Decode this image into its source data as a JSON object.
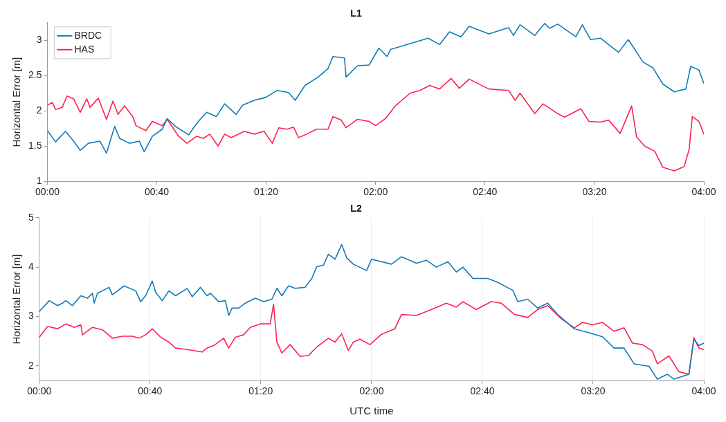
{
  "chart_data": [
    {
      "type": "line",
      "title": "L1",
      "ylabel": "Horizontal Error [m]",
      "xlim": [
        0,
        4
      ],
      "xticks": [
        {
          "value": 0,
          "label": "00:00"
        },
        {
          "value": 0.6667,
          "label": "00:40"
        },
        {
          "value": 1.3333,
          "label": "01:20"
        },
        {
          "value": 2,
          "label": "02:00"
        },
        {
          "value": 2.6667,
          "label": "02:40"
        },
        {
          "value": 3.3333,
          "label": "03:20"
        },
        {
          "value": 4,
          "label": "04:00"
        }
      ],
      "ylim": [
        1,
        3.25
      ],
      "yticks": [
        1,
        1.5,
        2,
        2.5,
        3
      ],
      "grid": false,
      "legend": "top left",
      "series": [
        {
          "name": "BRDC",
          "color": "#0e7bb8",
          "x": [
            0,
            0.05,
            0.11,
            0.16,
            0.2,
            0.25,
            0.32,
            0.36,
            0.41,
            0.44,
            0.5,
            0.56,
            0.59,
            0.64,
            0.7,
            0.73,
            0.78,
            0.86,
            0.92,
            0.97,
            1.03,
            1.08,
            1.15,
            1.19,
            1.26,
            1.33,
            1.4,
            1.47,
            1.51,
            1.57,
            1.65,
            1.71,
            1.74,
            1.81,
            1.82,
            1.89,
            1.96,
            2.02,
            2.07,
            2.09,
            2.19,
            2.32,
            2.39,
            2.45,
            2.52,
            2.57,
            2.69,
            2.81,
            2.84,
            2.88,
            2.97,
            3.03,
            3.06,
            3.11,
            3.22,
            3.26,
            3.31,
            3.37,
            3.48,
            3.54,
            3.63,
            3.69,
            3.75,
            3.82,
            3.89,
            3.92,
            3.97,
            4
          ],
          "values": [
            1.72,
            1.56,
            1.71,
            1.57,
            1.44,
            1.54,
            1.57,
            1.4,
            1.78,
            1.61,
            1.54,
            1.57,
            1.42,
            1.64,
            1.74,
            1.89,
            1.78,
            1.66,
            1.85,
            1.98,
            1.92,
            2.1,
            1.95,
            2.08,
            2.15,
            2.19,
            2.29,
            2.26,
            2.15,
            2.36,
            2.48,
            2.6,
            2.77,
            2.75,
            2.48,
            2.64,
            2.65,
            2.89,
            2.77,
            2.87,
            2.94,
            3.03,
            2.94,
            3.12,
            3.05,
            3.2,
            3.09,
            3.18,
            3.07,
            3.22,
            3.07,
            3.24,
            3.17,
            3.23,
            3.05,
            3.22,
            3.01,
            3.03,
            2.83,
            3.01,
            2.69,
            2.61,
            2.38,
            2.27,
            2.31,
            2.63,
            2.58,
            2.39
          ]
        },
        {
          "name": "HAS",
          "color": "#ff2050",
          "x": [
            0,
            0.03,
            0.05,
            0.09,
            0.12,
            0.16,
            0.2,
            0.24,
            0.26,
            0.31,
            0.36,
            0.4,
            0.43,
            0.47,
            0.52,
            0.54,
            0.6,
            0.64,
            0.7,
            0.73,
            0.8,
            0.85,
            0.91,
            0.95,
            0.99,
            1.04,
            1.08,
            1.12,
            1.2,
            1.26,
            1.32,
            1.37,
            1.41,
            1.46,
            1.5,
            1.53,
            1.58,
            1.64,
            1.71,
            1.74,
            1.79,
            1.82,
            1.89,
            1.96,
            2,
            2.06,
            2.12,
            2.21,
            2.27,
            2.33,
            2.39,
            2.46,
            2.51,
            2.57,
            2.69,
            2.81,
            2.85,
            2.88,
            2.97,
            3.02,
            3.11,
            3.15,
            3.25,
            3.3,
            3.37,
            3.42,
            3.49,
            3.56,
            3.59,
            3.64,
            3.7,
            3.75,
            3.82,
            3.88,
            3.91,
            3.93,
            3.97,
            4
          ],
          "values": [
            2.08,
            2.12,
            2.02,
            2.05,
            2.21,
            2.17,
            1.98,
            2.17,
            2.05,
            2.18,
            1.88,
            2.14,
            1.95,
            2.07,
            1.92,
            1.79,
            1.72,
            1.85,
            1.79,
            1.88,
            1.64,
            1.54,
            1.64,
            1.61,
            1.67,
            1.5,
            1.67,
            1.62,
            1.71,
            1.67,
            1.71,
            1.54,
            1.76,
            1.74,
            1.77,
            1.62,
            1.67,
            1.74,
            1.74,
            1.92,
            1.87,
            1.76,
            1.88,
            1.85,
            1.79,
            1.89,
            2.07,
            2.25,
            2.29,
            2.36,
            2.31,
            2.46,
            2.32,
            2.45,
            2.31,
            2.29,
            2.15,
            2.25,
            1.96,
            2.1,
            1.96,
            1.91,
            2.03,
            1.85,
            1.84,
            1.87,
            1.68,
            2.07,
            1.63,
            1.5,
            1.43,
            1.2,
            1.15,
            1.21,
            1.45,
            1.92,
            1.85,
            1.67
          ]
        }
      ]
    },
    {
      "type": "line",
      "title": "L2",
      "ylabel": "Horizontal Error [m]",
      "xlabel": "UTC time",
      "xlim": [
        0,
        4
      ],
      "xticks": [
        {
          "value": 0,
          "label": "00:00"
        },
        {
          "value": 0.6667,
          "label": "00:40"
        },
        {
          "value": 1.3333,
          "label": "01:20"
        },
        {
          "value": 2,
          "label": "02:00"
        },
        {
          "value": 2.6667,
          "label": "02:40"
        },
        {
          "value": 3.3333,
          "label": "03:20"
        },
        {
          "value": 4,
          "label": "04:00"
        }
      ],
      "ylim": [
        1.7,
        5
      ],
      "yticks": [
        2,
        3,
        4,
        5
      ],
      "grid": "x",
      "series": [
        {
          "color": "#0e7bb8",
          "x": [
            0,
            0.06,
            0.11,
            0.14,
            0.16,
            0.2,
            0.25,
            0.29,
            0.32,
            0.33,
            0.35,
            0.42,
            0.44,
            0.51,
            0.58,
            0.61,
            0.64,
            0.68,
            0.7,
            0.74,
            0.78,
            0.82,
            0.89,
            0.92,
            0.97,
            1.01,
            1.03,
            1.08,
            1.12,
            1.14,
            1.16,
            1.2,
            1.24,
            1.3,
            1.35,
            1.4,
            1.43,
            1.46,
            1.5,
            1.54,
            1.6,
            1.64,
            1.67,
            1.71,
            1.74,
            1.78,
            1.82,
            1.85,
            1.89,
            1.97,
            2,
            2.12,
            2.18,
            2.27,
            2.33,
            2.39,
            2.46,
            2.51,
            2.55,
            2.61,
            2.7,
            2.76,
            2.85,
            2.88,
            2.94,
            3,
            3.06,
            3.12,
            3.22,
            3.31,
            3.39,
            3.46,
            3.52,
            3.58,
            3.67,
            3.72,
            3.78,
            3.82,
            3.91,
            3.94,
            3.97,
            4
          ],
          "values": [
            3.1,
            3.32,
            3.22,
            3.27,
            3.32,
            3.22,
            3.42,
            3.37,
            3.47,
            3.27,
            3.47,
            3.59,
            3.44,
            3.62,
            3.52,
            3.3,
            3.42,
            3.72,
            3.49,
            3.32,
            3.52,
            3.42,
            3.57,
            3.4,
            3.59,
            3.42,
            3.47,
            3.3,
            3.32,
            3.02,
            3.17,
            3.17,
            3.27,
            3.37,
            3.3,
            3.35,
            3.57,
            3.42,
            3.62,
            3.57,
            3.59,
            3.77,
            4.01,
            4.04,
            4.26,
            4.16,
            4.46,
            4.19,
            4.06,
            3.93,
            4.16,
            4.06,
            4.21,
            4.08,
            4.14,
            4,
            4.11,
            3.9,
            4,
            3.77,
            3.77,
            3.69,
            3.53,
            3.3,
            3.35,
            3.17,
            3.27,
            3.04,
            2.75,
            2.67,
            2.59,
            2.36,
            2.36,
            2.04,
            1.99,
            1.73,
            1.83,
            1.73,
            1.83,
            2.54,
            2.41,
            2.46
          ]
        },
        {
          "color": "#ff2050",
          "x": [
            0,
            0.05,
            0.11,
            0.16,
            0.21,
            0.25,
            0.26,
            0.32,
            0.38,
            0.44,
            0.5,
            0.56,
            0.6,
            0.64,
            0.68,
            0.73,
            0.78,
            0.82,
            0.89,
            0.98,
            1.01,
            1.05,
            1.11,
            1.14,
            1.18,
            1.23,
            1.27,
            1.33,
            1.39,
            1.41,
            1.43,
            1.46,
            1.51,
            1.57,
            1.62,
            1.67,
            1.74,
            1.78,
            1.82,
            1.86,
            1.89,
            1.93,
            1.99,
            2.06,
            2.14,
            2.18,
            2.27,
            2.36,
            2.45,
            2.51,
            2.55,
            2.63,
            2.72,
            2.78,
            2.86,
            2.94,
            3,
            3.06,
            3.14,
            3.22,
            3.27,
            3.33,
            3.39,
            3.46,
            3.52,
            3.57,
            3.63,
            3.69,
            3.72,
            3.79,
            3.85,
            3.91,
            3.94,
            3.97,
            4
          ],
          "values": [
            2.58,
            2.8,
            2.75,
            2.85,
            2.78,
            2.83,
            2.63,
            2.78,
            2.73,
            2.56,
            2.6,
            2.6,
            2.56,
            2.63,
            2.75,
            2.58,
            2.48,
            2.36,
            2.33,
            2.28,
            2.36,
            2.41,
            2.56,
            2.36,
            2.58,
            2.63,
            2.78,
            2.85,
            2.85,
            3.25,
            2.48,
            2.26,
            2.43,
            2.19,
            2.21,
            2.38,
            2.56,
            2.48,
            2.65,
            2.31,
            2.48,
            2.54,
            2.43,
            2.64,
            2.75,
            3.04,
            3.02,
            3.14,
            3.27,
            3.19,
            3.3,
            3.14,
            3.3,
            3.27,
            3.04,
            2.98,
            3.14,
            3.22,
            2.96,
            2.77,
            2.88,
            2.83,
            2.88,
            2.7,
            2.77,
            2.46,
            2.43,
            2.3,
            2.04,
            2.2,
            1.88,
            1.83,
            2.57,
            2.36,
            2.33
          ]
        }
      ]
    }
  ]
}
